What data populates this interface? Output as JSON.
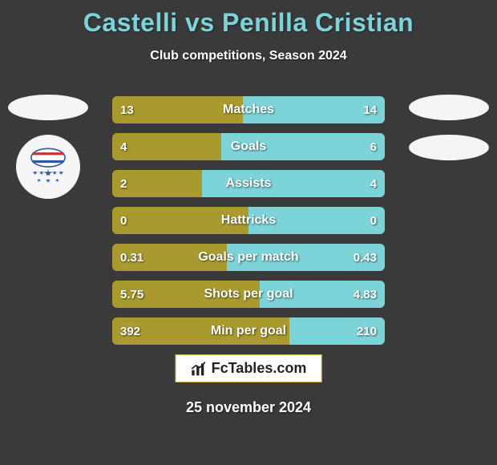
{
  "title": "Castelli vs Penilla Cristian",
  "subtitle": "Club competitions, Season 2024",
  "date": "25 november 2024",
  "colors": {
    "left": "#a89a2f",
    "right": "#7cd3d8",
    "rowRadius": 6
  },
  "rows": [
    {
      "label": "Matches",
      "leftVal": "13",
      "rightVal": "14",
      "leftPct": 48,
      "rightPct": 52
    },
    {
      "label": "Goals",
      "leftVal": "4",
      "rightVal": "6",
      "leftPct": 40,
      "rightPct": 60
    },
    {
      "label": "Assists",
      "leftVal": "2",
      "rightVal": "4",
      "leftPct": 33,
      "rightPct": 67
    },
    {
      "label": "Hattricks",
      "leftVal": "0",
      "rightVal": "0",
      "leftPct": 50,
      "rightPct": 50
    },
    {
      "label": "Goals per match",
      "leftVal": "0.31",
      "rightVal": "0.43",
      "leftPct": 42,
      "rightPct": 58
    },
    {
      "label": "Shots per goal",
      "leftVal": "5.75",
      "rightVal": "4.83",
      "leftPct": 54,
      "rightPct": 46
    },
    {
      "label": "Min per goal",
      "leftVal": "392",
      "rightVal": "210",
      "leftPct": 65,
      "rightPct": 35
    }
  ],
  "brand": "FcTables.com"
}
